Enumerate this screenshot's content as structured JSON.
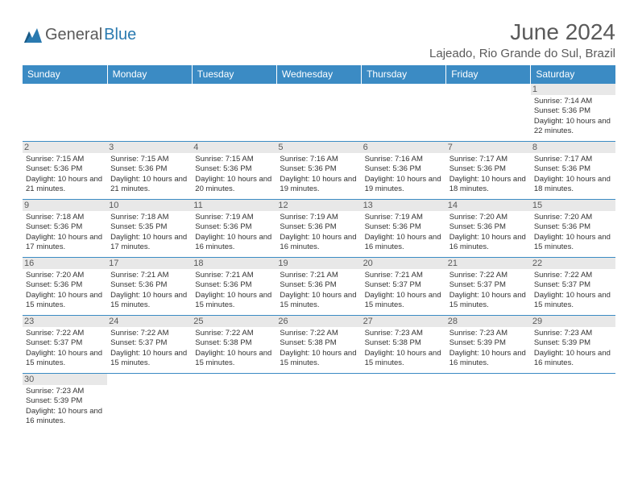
{
  "logo": {
    "prefix": "General",
    "suffix": "Blue"
  },
  "title": "June 2024",
  "location": "Lajeado, Rio Grande do Sul, Brazil",
  "colors": {
    "header_bg": "#3b8bc4",
    "header_fg": "#ffffff",
    "border": "#3b8bc4",
    "daynum_bg": "#e8e8e8",
    "text_muted": "#5a5a5a",
    "logo_accent": "#2a7ab0"
  },
  "weekdays": [
    "Sunday",
    "Monday",
    "Tuesday",
    "Wednesday",
    "Thursday",
    "Friday",
    "Saturday"
  ],
  "weeks": [
    [
      null,
      null,
      null,
      null,
      null,
      null,
      {
        "d": "1",
        "sr": "7:14 AM",
        "ss": "5:36 PM",
        "dl": "10 hours and 22 minutes."
      }
    ],
    [
      {
        "d": "2",
        "sr": "7:15 AM",
        "ss": "5:36 PM",
        "dl": "10 hours and 21 minutes."
      },
      {
        "d": "3",
        "sr": "7:15 AM",
        "ss": "5:36 PM",
        "dl": "10 hours and 21 minutes."
      },
      {
        "d": "4",
        "sr": "7:15 AM",
        "ss": "5:36 PM",
        "dl": "10 hours and 20 minutes."
      },
      {
        "d": "5",
        "sr": "7:16 AM",
        "ss": "5:36 PM",
        "dl": "10 hours and 19 minutes."
      },
      {
        "d": "6",
        "sr": "7:16 AM",
        "ss": "5:36 PM",
        "dl": "10 hours and 19 minutes."
      },
      {
        "d": "7",
        "sr": "7:17 AM",
        "ss": "5:36 PM",
        "dl": "10 hours and 18 minutes."
      },
      {
        "d": "8",
        "sr": "7:17 AM",
        "ss": "5:36 PM",
        "dl": "10 hours and 18 minutes."
      }
    ],
    [
      {
        "d": "9",
        "sr": "7:18 AM",
        "ss": "5:36 PM",
        "dl": "10 hours and 17 minutes."
      },
      {
        "d": "10",
        "sr": "7:18 AM",
        "ss": "5:35 PM",
        "dl": "10 hours and 17 minutes."
      },
      {
        "d": "11",
        "sr": "7:19 AM",
        "ss": "5:36 PM",
        "dl": "10 hours and 16 minutes."
      },
      {
        "d": "12",
        "sr": "7:19 AM",
        "ss": "5:36 PM",
        "dl": "10 hours and 16 minutes."
      },
      {
        "d": "13",
        "sr": "7:19 AM",
        "ss": "5:36 PM",
        "dl": "10 hours and 16 minutes."
      },
      {
        "d": "14",
        "sr": "7:20 AM",
        "ss": "5:36 PM",
        "dl": "10 hours and 16 minutes."
      },
      {
        "d": "15",
        "sr": "7:20 AM",
        "ss": "5:36 PM",
        "dl": "10 hours and 15 minutes."
      }
    ],
    [
      {
        "d": "16",
        "sr": "7:20 AM",
        "ss": "5:36 PM",
        "dl": "10 hours and 15 minutes."
      },
      {
        "d": "17",
        "sr": "7:21 AM",
        "ss": "5:36 PM",
        "dl": "10 hours and 15 minutes."
      },
      {
        "d": "18",
        "sr": "7:21 AM",
        "ss": "5:36 PM",
        "dl": "10 hours and 15 minutes."
      },
      {
        "d": "19",
        "sr": "7:21 AM",
        "ss": "5:36 PM",
        "dl": "10 hours and 15 minutes."
      },
      {
        "d": "20",
        "sr": "7:21 AM",
        "ss": "5:37 PM",
        "dl": "10 hours and 15 minutes."
      },
      {
        "d": "21",
        "sr": "7:22 AM",
        "ss": "5:37 PM",
        "dl": "10 hours and 15 minutes."
      },
      {
        "d": "22",
        "sr": "7:22 AM",
        "ss": "5:37 PM",
        "dl": "10 hours and 15 minutes."
      }
    ],
    [
      {
        "d": "23",
        "sr": "7:22 AM",
        "ss": "5:37 PM",
        "dl": "10 hours and 15 minutes."
      },
      {
        "d": "24",
        "sr": "7:22 AM",
        "ss": "5:37 PM",
        "dl": "10 hours and 15 minutes."
      },
      {
        "d": "25",
        "sr": "7:22 AM",
        "ss": "5:38 PM",
        "dl": "10 hours and 15 minutes."
      },
      {
        "d": "26",
        "sr": "7:22 AM",
        "ss": "5:38 PM",
        "dl": "10 hours and 15 minutes."
      },
      {
        "d": "27",
        "sr": "7:23 AM",
        "ss": "5:38 PM",
        "dl": "10 hours and 15 minutes."
      },
      {
        "d": "28",
        "sr": "7:23 AM",
        "ss": "5:39 PM",
        "dl": "10 hours and 16 minutes."
      },
      {
        "d": "29",
        "sr": "7:23 AM",
        "ss": "5:39 PM",
        "dl": "10 hours and 16 minutes."
      }
    ],
    [
      {
        "d": "30",
        "sr": "7:23 AM",
        "ss": "5:39 PM",
        "dl": "10 hours and 16 minutes."
      },
      null,
      null,
      null,
      null,
      null,
      null
    ]
  ],
  "labels": {
    "sunrise": "Sunrise:",
    "sunset": "Sunset:",
    "daylight": "Daylight:"
  }
}
